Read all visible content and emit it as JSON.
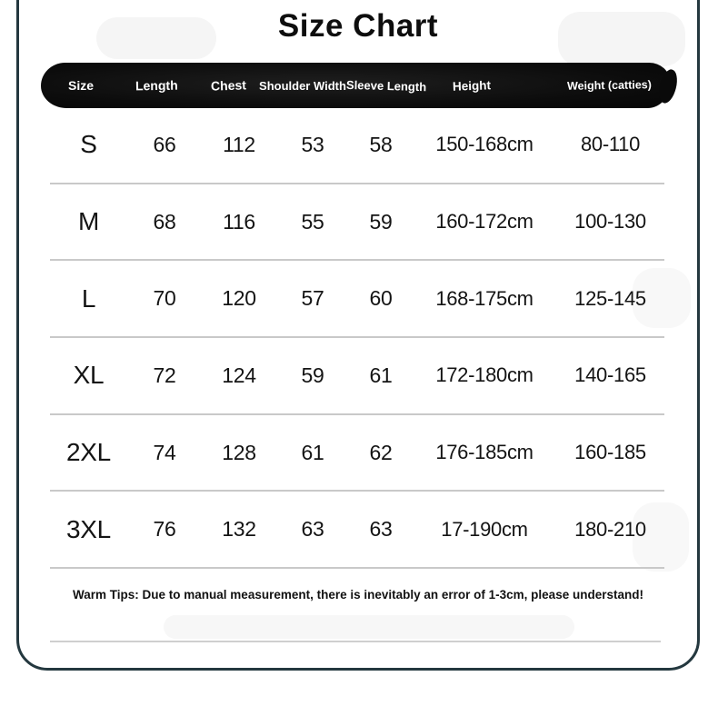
{
  "chart_data": {
    "type": "table",
    "title": "Size Chart",
    "columns": [
      "Size",
      "Length",
      "Chest",
      "Shoulder Width",
      "Sleeve Length",
      "Height",
      "Weight (catties)"
    ],
    "rows": [
      [
        "S",
        "66",
        "112",
        "53",
        "58",
        "150-168cm",
        "80-110"
      ],
      [
        "M",
        "68",
        "116",
        "55",
        "59",
        "160-172cm",
        "100-130"
      ],
      [
        "L",
        "70",
        "120",
        "57",
        "60",
        "168-175cm",
        "125-145"
      ],
      [
        "XL",
        "72",
        "124",
        "59",
        "61",
        "172-180cm",
        "140-165"
      ],
      [
        "2XL",
        "74",
        "128",
        "61",
        "62",
        "176-185cm",
        "160-185"
      ],
      [
        "3XL",
        "76",
        "132",
        "63",
        "63",
        "17-190cm",
        "180-210"
      ]
    ],
    "layout_hints": {
      "header_style": "black rounded pill bar, white bold labels",
      "row_dividers": "light gray horizontal lines",
      "grid": "off"
    }
  },
  "footer": {
    "warm_tips": "Warm Tips: Due to manual measurement, there is inevitably an error of 1-3cm, please understand!"
  },
  "colors": {
    "card_border": "#24383f",
    "header_bar": "#0c0c0c",
    "header_text": "#ffffff",
    "divider": "#c9c9c9",
    "text": "#141414",
    "background": "#ffffff"
  }
}
